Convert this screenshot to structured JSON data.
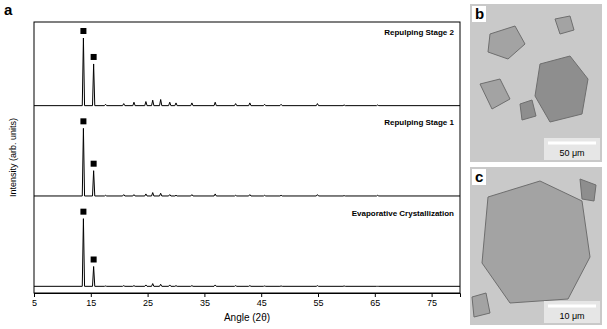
{
  "chart_data": {
    "type": "line",
    "panel": "a",
    "x_label": "Angle (2θ)",
    "y_label": "Intensity (arb. units)",
    "xlim": [
      5,
      80
    ],
    "xticks": [
      5,
      15,
      25,
      35,
      45,
      55,
      65,
      75
    ],
    "ylim": [
      0,
      100
    ],
    "tick_labels": "x",
    "grid": false,
    "marker": "square",
    "x": [
      5,
      13.5,
      13.7,
      13.9,
      15.3,
      15.5,
      15.7,
      17.4,
      17.6,
      17.8,
      20.6,
      20.8,
      21.0,
      22.4,
      22.6,
      22.8,
      24.5,
      24.7,
      24.9,
      25.7,
      25.9,
      26.1,
      27.1,
      27.3,
      27.5,
      28.7,
      28.9,
      29.1,
      29.8,
      30.0,
      30.2,
      32.6,
      32.8,
      33.0,
      36.7,
      36.9,
      37.1,
      40.3,
      40.5,
      40.7,
      42.8,
      43.0,
      43.2,
      45.4,
      45.6,
      45.8,
      48.3,
      48.5,
      48.7,
      54.7,
      54.9,
      55.1,
      59.4,
      59.6,
      59.8,
      65.3,
      65.5,
      65.7,
      80
    ],
    "series": [
      {
        "name": "Repulping Stage 2",
        "color": "#000000",
        "peak_markers": [
          13.7,
          15.5
        ],
        "values": [
          1,
          1,
          100,
          1,
          1,
          62,
          1,
          1,
          3,
          1,
          1,
          4,
          1,
          1,
          6,
          1,
          1,
          7,
          1,
          1,
          9,
          1,
          1,
          10,
          1,
          1,
          6,
          1,
          1,
          5,
          1,
          1,
          5,
          1,
          1,
          6,
          1,
          1,
          4,
          1,
          1,
          5,
          1,
          1,
          3,
          1,
          1,
          3,
          1,
          1,
          4,
          1,
          1,
          2,
          1,
          1,
          2,
          1,
          1
        ]
      },
      {
        "name": "Repulping Stage 1",
        "color": "#000000",
        "peak_markers": [
          13.7,
          15.5
        ],
        "values": [
          1,
          1,
          100,
          1,
          1,
          38,
          1,
          1,
          2,
          1,
          1,
          3,
          1,
          1,
          3,
          1,
          1,
          4,
          1,
          1,
          6,
          1,
          1,
          5,
          1,
          1,
          3,
          1,
          1,
          2,
          1,
          1,
          3,
          1,
          1,
          4,
          1,
          1,
          2,
          1,
          1,
          3,
          1,
          1,
          2,
          1,
          1,
          2,
          1,
          1,
          3,
          1,
          1,
          1.5,
          1,
          1,
          2,
          1,
          1
        ]
      },
      {
        "name": "Evaporative Crystallization",
        "color": "#000000",
        "peak_markers": [
          13.7,
          15.5
        ],
        "values": [
          1,
          1,
          100,
          1,
          1,
          30,
          1,
          1,
          1.5,
          1,
          1,
          2,
          1,
          1,
          2,
          1,
          1,
          3,
          1,
          1,
          5,
          1,
          1,
          4,
          1,
          1,
          3,
          1,
          1,
          2,
          1,
          1,
          2,
          1,
          1,
          3,
          1,
          1,
          2,
          1,
          1,
          2,
          1,
          1,
          1.5,
          1,
          1,
          1.5,
          1,
          1,
          2,
          1,
          1,
          1.5,
          1,
          1,
          1,
          1,
          1
        ]
      }
    ]
  },
  "images": [
    {
      "panel": "b",
      "scale_bar": "50 μm"
    },
    {
      "panel": "c",
      "scale_bar": "10 μm"
    }
  ]
}
